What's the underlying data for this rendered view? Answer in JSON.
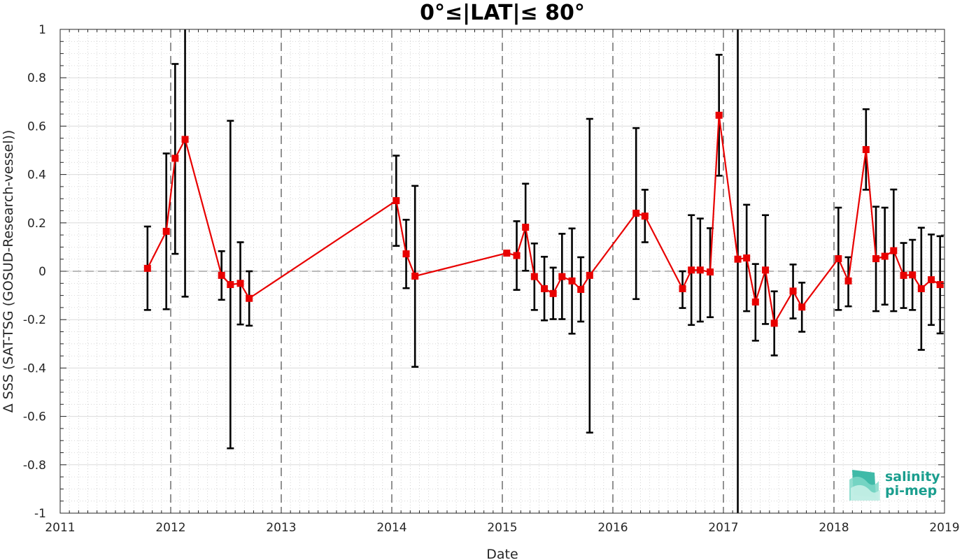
{
  "chart_data": {
    "type": "line",
    "title": "0°≤|LAT|≤ 80°",
    "xlabel": "Date",
    "ylabel": "Δ SSS (SAT-TSG (GOSUD-Research-vessel))",
    "xlim": [
      2011,
      2019
    ],
    "ylim": [
      -1,
      1
    ],
    "x_ticks": [
      "2011",
      "2012",
      "2013",
      "2014",
      "2015",
      "2016",
      "2017",
      "2018",
      "2019"
    ],
    "y_ticks": [
      "1",
      "0.8",
      "0.6",
      "0.4",
      "0.2",
      "0",
      "-0.2",
      "-0.4",
      "-0.6",
      "-0.8",
      "-1"
    ],
    "grid": true,
    "year_boundaries": [
      2012,
      2013,
      2014,
      2015,
      2016,
      2017,
      2018
    ],
    "zero_line": 0,
    "series": [
      {
        "color": "#e80000",
        "marker": "square",
        "errorbar_color": "#000000",
        "points": [
          {
            "x": 2011.79,
            "y": 0.012,
            "lo": -0.16,
            "hi": 0.185
          },
          {
            "x": 2011.96,
            "y": 0.165,
            "lo": -0.157,
            "hi": 0.487
          },
          {
            "x": 2012.04,
            "y": 0.467,
            "lo": 0.072,
            "hi": 0.857
          },
          {
            "x": 2012.13,
            "y": 0.545,
            "lo": -0.105,
            "hi": 1.0
          },
          {
            "x": 2012.46,
            "y": -0.017,
            "lo": -0.118,
            "hi": 0.083
          },
          {
            "x": 2012.54,
            "y": -0.055,
            "lo": -0.732,
            "hi": 0.622
          },
          {
            "x": 2012.63,
            "y": -0.05,
            "lo": -0.22,
            "hi": 0.12
          },
          {
            "x": 2012.71,
            "y": -0.112,
            "lo": -0.225,
            "hi": 0.0
          },
          {
            "x": 2014.04,
            "y": 0.292,
            "lo": 0.105,
            "hi": 0.478
          },
          {
            "x": 2014.13,
            "y": 0.072,
            "lo": -0.07,
            "hi": 0.213
          },
          {
            "x": 2014.21,
            "y": -0.02,
            "lo": -0.395,
            "hi": 0.353
          },
          {
            "x": 2015.04,
            "y": 0.075,
            "lo": 0.075,
            "hi": 0.075
          },
          {
            "x": 2015.13,
            "y": 0.065,
            "lo": -0.077,
            "hi": 0.207
          },
          {
            "x": 2015.21,
            "y": 0.182,
            "lo": 0.002,
            "hi": 0.362
          },
          {
            "x": 2015.29,
            "y": -0.022,
            "lo": -0.16,
            "hi": 0.115
          },
          {
            "x": 2015.38,
            "y": -0.072,
            "lo": -0.203,
            "hi": 0.06
          },
          {
            "x": 2015.46,
            "y": -0.092,
            "lo": -0.198,
            "hi": 0.015
          },
          {
            "x": 2015.54,
            "y": -0.022,
            "lo": -0.198,
            "hi": 0.155
          },
          {
            "x": 2015.63,
            "y": -0.04,
            "lo": -0.258,
            "hi": 0.177
          },
          {
            "x": 2015.71,
            "y": -0.075,
            "lo": -0.208,
            "hi": 0.058
          },
          {
            "x": 2015.79,
            "y": -0.017,
            "lo": -0.667,
            "hi": 0.63
          },
          {
            "x": 2016.21,
            "y": 0.24,
            "lo": -0.115,
            "hi": 0.592
          },
          {
            "x": 2016.29,
            "y": 0.228,
            "lo": 0.12,
            "hi": 0.337
          },
          {
            "x": 2016.63,
            "y": -0.072,
            "lo": -0.152,
            "hi": 0.0
          },
          {
            "x": 2016.71,
            "y": 0.005,
            "lo": -0.222,
            "hi": 0.232
          },
          {
            "x": 2016.79,
            "y": 0.005,
            "lo": -0.208,
            "hi": 0.218
          },
          {
            "x": 2016.88,
            "y": -0.003,
            "lo": -0.19,
            "hi": 0.178
          },
          {
            "x": 2016.96,
            "y": 0.645,
            "lo": 0.395,
            "hi": 0.895
          },
          {
            "x": 2017.13,
            "y": 0.05,
            "lo": -1.0,
            "hi": 1.0
          },
          {
            "x": 2017.21,
            "y": 0.055,
            "lo": -0.165,
            "hi": 0.275
          },
          {
            "x": 2017.29,
            "y": -0.127,
            "lo": -0.287,
            "hi": 0.03
          },
          {
            "x": 2017.38,
            "y": 0.005,
            "lo": -0.218,
            "hi": 0.232
          },
          {
            "x": 2017.46,
            "y": -0.215,
            "lo": -0.348,
            "hi": -0.083
          },
          {
            "x": 2017.63,
            "y": -0.082,
            "lo": -0.195,
            "hi": 0.028
          },
          {
            "x": 2017.71,
            "y": -0.148,
            "lo": -0.25,
            "hi": -0.047
          },
          {
            "x": 2018.04,
            "y": 0.052,
            "lo": -0.16,
            "hi": 0.263
          },
          {
            "x": 2018.13,
            "y": -0.04,
            "lo": -0.145,
            "hi": 0.058
          },
          {
            "x": 2018.29,
            "y": 0.503,
            "lo": 0.337,
            "hi": 0.67
          },
          {
            "x": 2018.38,
            "y": 0.052,
            "lo": -0.165,
            "hi": 0.267
          },
          {
            "x": 2018.46,
            "y": 0.062,
            "lo": -0.138,
            "hi": 0.263
          },
          {
            "x": 2018.54,
            "y": 0.085,
            "lo": -0.165,
            "hi": 0.338
          },
          {
            "x": 2018.63,
            "y": -0.017,
            "lo": -0.152,
            "hi": 0.117
          },
          {
            "x": 2018.71,
            "y": -0.015,
            "lo": -0.16,
            "hi": 0.13
          },
          {
            "x": 2018.79,
            "y": -0.072,
            "lo": -0.325,
            "hi": 0.18
          },
          {
            "x": 2018.88,
            "y": -0.035,
            "lo": -0.222,
            "hi": 0.152
          },
          {
            "x": 2018.96,
            "y": -0.055,
            "lo": -0.257,
            "hi": 0.145
          }
        ]
      }
    ]
  },
  "logo": {
    "line1": "salinity",
    "line2": "pi-mep",
    "color": "#1a9e8e"
  }
}
